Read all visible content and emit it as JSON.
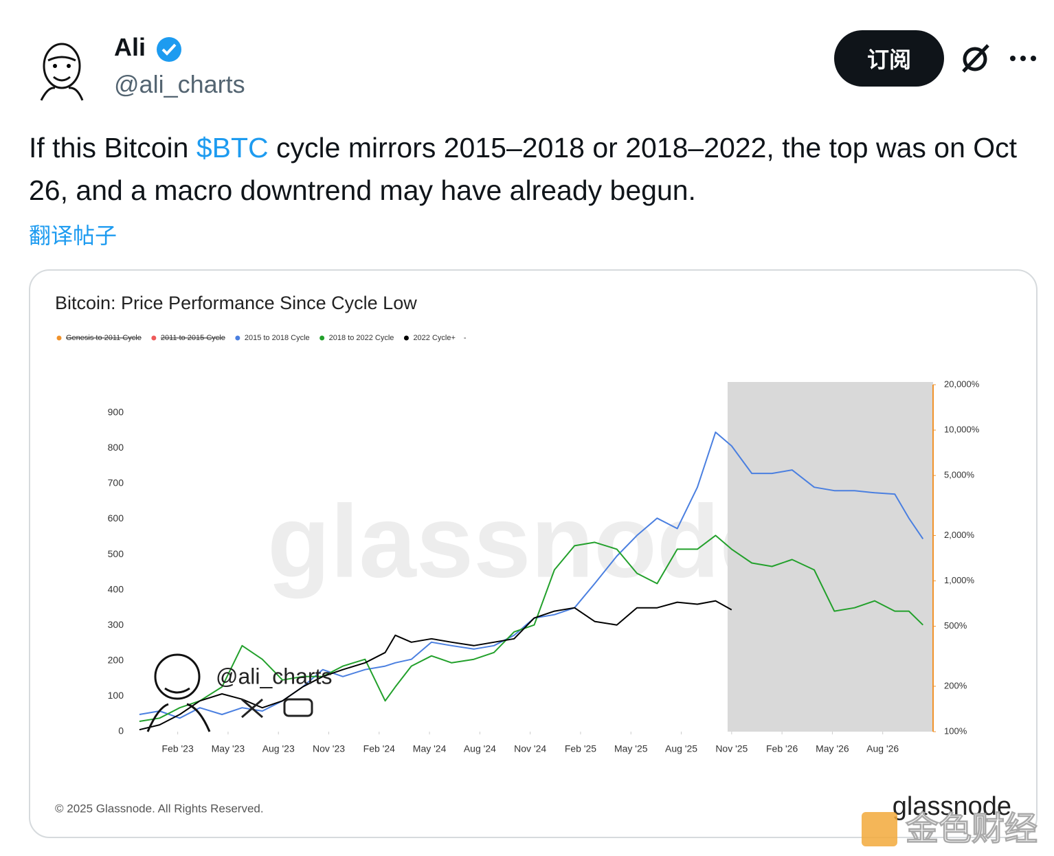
{
  "tweet": {
    "name": "Ali",
    "handle": "@ali_charts",
    "subscribe": "订阅",
    "text_parts": [
      "If this Bitcoin ",
      "$BTC",
      " cycle mirrors 2015–2018 or 2018–2022, the top was on Oct 26, and a macro downtrend may have already begun."
    ],
    "translate": "翻译帖子"
  },
  "chart_data": {
    "type": "line",
    "title": "Bitcoin: Price Performance Since Cycle Low",
    "hidden_series": [
      {
        "name": "Genesis to 2011 Cycle",
        "color": "#f0922b"
      },
      {
        "name": "2011 to 2015 Cycle",
        "color": "#ee5a5a"
      }
    ],
    "legend_trailer": "-",
    "x": [
      2022.89,
      2022.99,
      2023.09,
      2023.19,
      2023.3,
      2023.4,
      2023.5,
      2023.6,
      2023.7,
      2023.8,
      2023.9,
      2024.01,
      2024.11,
      2024.16,
      2024.24,
      2024.34,
      2024.44,
      2024.55,
      2024.65,
      2024.75,
      2024.85,
      2024.95,
      2025.05,
      2025.15,
      2025.26,
      2025.36,
      2025.46,
      2025.56,
      2025.66,
      2025.75,
      2025.83,
      2025.93,
      2026.03,
      2026.13,
      2026.24,
      2026.34,
      2026.44,
      2026.54,
      2026.64,
      2026.71,
      2026.78
    ],
    "series": [
      {
        "name": "2015 to 2018 Cycle",
        "color": "#4a7fe0",
        "axis": "y2",
        "values": [
          130,
          137,
          123,
          144,
          130,
          144,
          137,
          160,
          198,
          258,
          232,
          258,
          272,
          286,
          302,
          392,
          372,
          353,
          372,
          436,
          567,
          597,
          663,
          959,
          1460,
          2002,
          2604,
          2223,
          4180,
          9690,
          7850,
          5160,
          5160,
          5440,
          4180,
          3965,
          3965,
          3840,
          3760,
          2604,
          1900
        ]
      },
      {
        "name": "2018 to 2022 Cycle",
        "color": "#22a02b",
        "axis": "y2",
        "values": [
          117,
          123,
          144,
          160,
          198,
          372,
          302,
          220,
          232,
          232,
          272,
          302,
          160,
          198,
          272,
          318,
          286,
          302,
          335,
          459,
          510,
          1183,
          1710,
          1803,
          1622,
          1123,
          959,
          1622,
          1622,
          2002,
          1622,
          1314,
          1247,
          1385,
          1183,
          630,
          663,
          737,
          630,
          630,
          510
        ]
      },
      {
        "name": "2022 Cycle+",
        "color": "#000000",
        "axis": "y2",
        "values": [
          103,
          111,
          130,
          160,
          178,
          164,
          144,
          160,
          198,
          232,
          258,
          286,
          335,
          436,
          392,
          413,
          392,
          372,
          392,
          413,
          567,
          630,
          663,
          538,
          510,
          663,
          663,
          722,
          700,
          737,
          643,
          null,
          null,
          null,
          null,
          null,
          null,
          null,
          null,
          null,
          null
        ]
      }
    ],
    "xlim": [
      2022.88,
      2026.83
    ],
    "xticks": [
      {
        "value": 2023.08,
        "label": "Feb '23"
      },
      {
        "value": 2023.33,
        "label": "May '23"
      },
      {
        "value": 2023.58,
        "label": "Aug '23"
      },
      {
        "value": 2023.83,
        "label": "Nov '23"
      },
      {
        "value": 2024.08,
        "label": "Feb '24"
      },
      {
        "value": 2024.33,
        "label": "May '24"
      },
      {
        "value": 2024.58,
        "label": "Aug '24"
      },
      {
        "value": 2024.83,
        "label": "Nov '24"
      },
      {
        "value": 2025.08,
        "label": "Feb '25"
      },
      {
        "value": 2025.33,
        "label": "May '25"
      },
      {
        "value": 2025.58,
        "label": "Aug '25"
      },
      {
        "value": 2025.83,
        "label": "Nov '25"
      },
      {
        "value": 2026.08,
        "label": "Feb '26"
      },
      {
        "value": 2026.33,
        "label": "May '26"
      },
      {
        "value": 2026.58,
        "label": "Aug '26"
      }
    ],
    "ylim": [
      0,
      979
    ],
    "yticks": [
      0,
      100,
      200,
      300,
      400,
      500,
      600,
      700,
      800,
      900
    ],
    "y2lim": [
      100,
      20000
    ],
    "y2log": true,
    "y2ticks": [
      {
        "value": 100,
        "label": "100%"
      },
      {
        "value": 200,
        "label": "200%"
      },
      {
        "value": 500,
        "label": "500%"
      },
      {
        "value": 1000,
        "label": "1,000%"
      },
      {
        "value": 2000,
        "label": "2,000%"
      },
      {
        "value": 5000,
        "label": "5,000%"
      },
      {
        "value": 10000,
        "label": "10,000%"
      },
      {
        "value": 20000,
        "label": "20,000%"
      }
    ],
    "shaded_region": [
      2025.81,
      2026.83
    ],
    "shade_color": "#d9d9d9",
    "edge_color": "#f0922b",
    "watermark": "glassnode",
    "author_watermark": "@ali_charts",
    "copyright": "© 2025 Glassnode. All Rights Reserved.",
    "logo": "glassnode"
  },
  "site_watermark": "金色财经"
}
